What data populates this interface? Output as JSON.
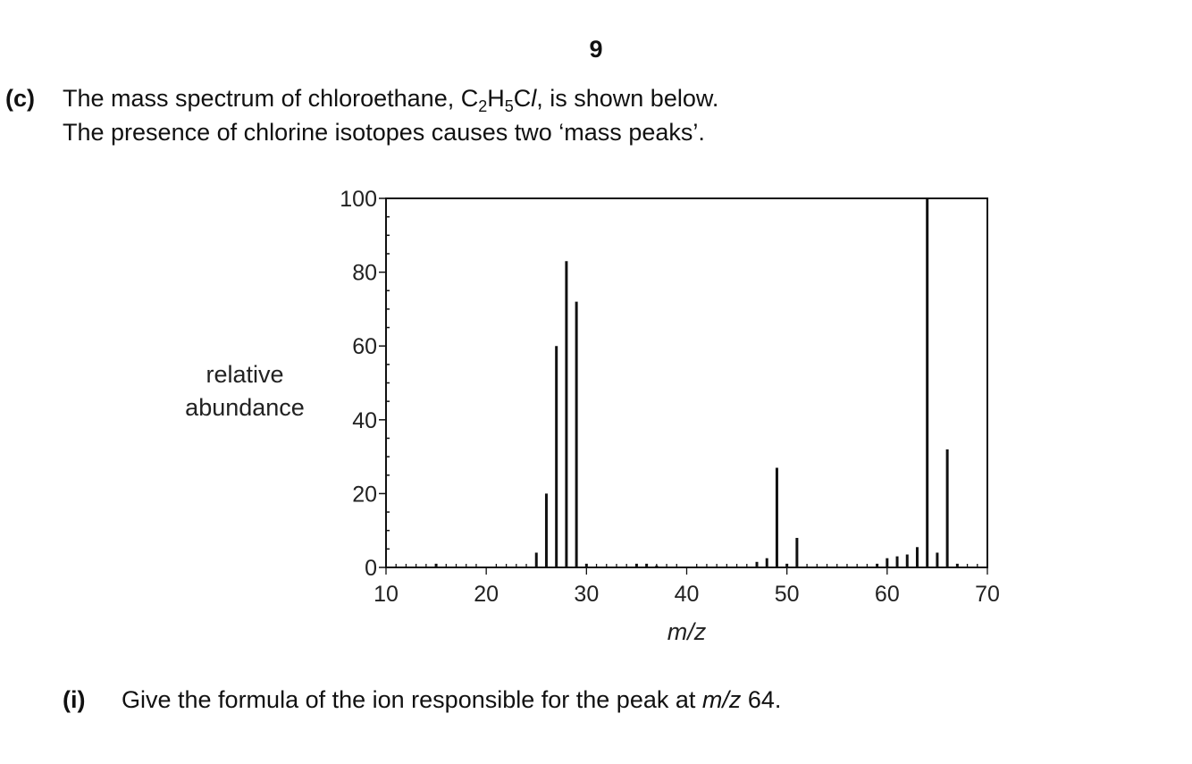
{
  "page": {
    "number": "9"
  },
  "question": {
    "part_label": "(c)",
    "line1": {
      "text_before": "The mass spectrum of chloroethane, ",
      "formula": {
        "c": "C",
        "c_sub": "2",
        "h": "H",
        "h_sub": "5",
        "cl": "Cl"
      },
      "text_after": ", is shown below."
    },
    "line2": "The presence of chlorine isotopes causes two ‘mass peaks’."
  },
  "subquestion": {
    "label": "(i)",
    "text_before": "Give the formula of the ion responsible for the peak at ",
    "mz": "m/z",
    "text_after": " 64."
  },
  "chart_data": {
    "type": "bar",
    "ylabel": [
      "relative",
      "abundance"
    ],
    "xlabel": "m/z",
    "xlim": [
      10,
      70
    ],
    "ylim": [
      0,
      100
    ],
    "xticks": [
      10,
      20,
      30,
      40,
      50,
      60,
      70
    ],
    "yticks": [
      0,
      20,
      40,
      60,
      80,
      100
    ],
    "grid": false,
    "peaks": [
      {
        "x": 15,
        "y": 1
      },
      {
        "x": 25,
        "y": 4
      },
      {
        "x": 26,
        "y": 20
      },
      {
        "x": 27,
        "y": 60
      },
      {
        "x": 28,
        "y": 83
      },
      {
        "x": 29,
        "y": 72
      },
      {
        "x": 30,
        "y": 1
      },
      {
        "x": 35,
        "y": 1
      },
      {
        "x": 36,
        "y": 1
      },
      {
        "x": 37,
        "y": 0.5
      },
      {
        "x": 47,
        "y": 1.5
      },
      {
        "x": 48,
        "y": 2.5
      },
      {
        "x": 49,
        "y": 27
      },
      {
        "x": 50,
        "y": 1
      },
      {
        "x": 51,
        "y": 8
      },
      {
        "x": 59,
        "y": 1
      },
      {
        "x": 60,
        "y": 2.5
      },
      {
        "x": 61,
        "y": 3
      },
      {
        "x": 62,
        "y": 3.5
      },
      {
        "x": 63,
        "y": 5.5
      },
      {
        "x": 64,
        "y": 100
      },
      {
        "x": 65,
        "y": 4
      },
      {
        "x": 66,
        "y": 32
      },
      {
        "x": 67,
        "y": 1
      }
    ]
  }
}
